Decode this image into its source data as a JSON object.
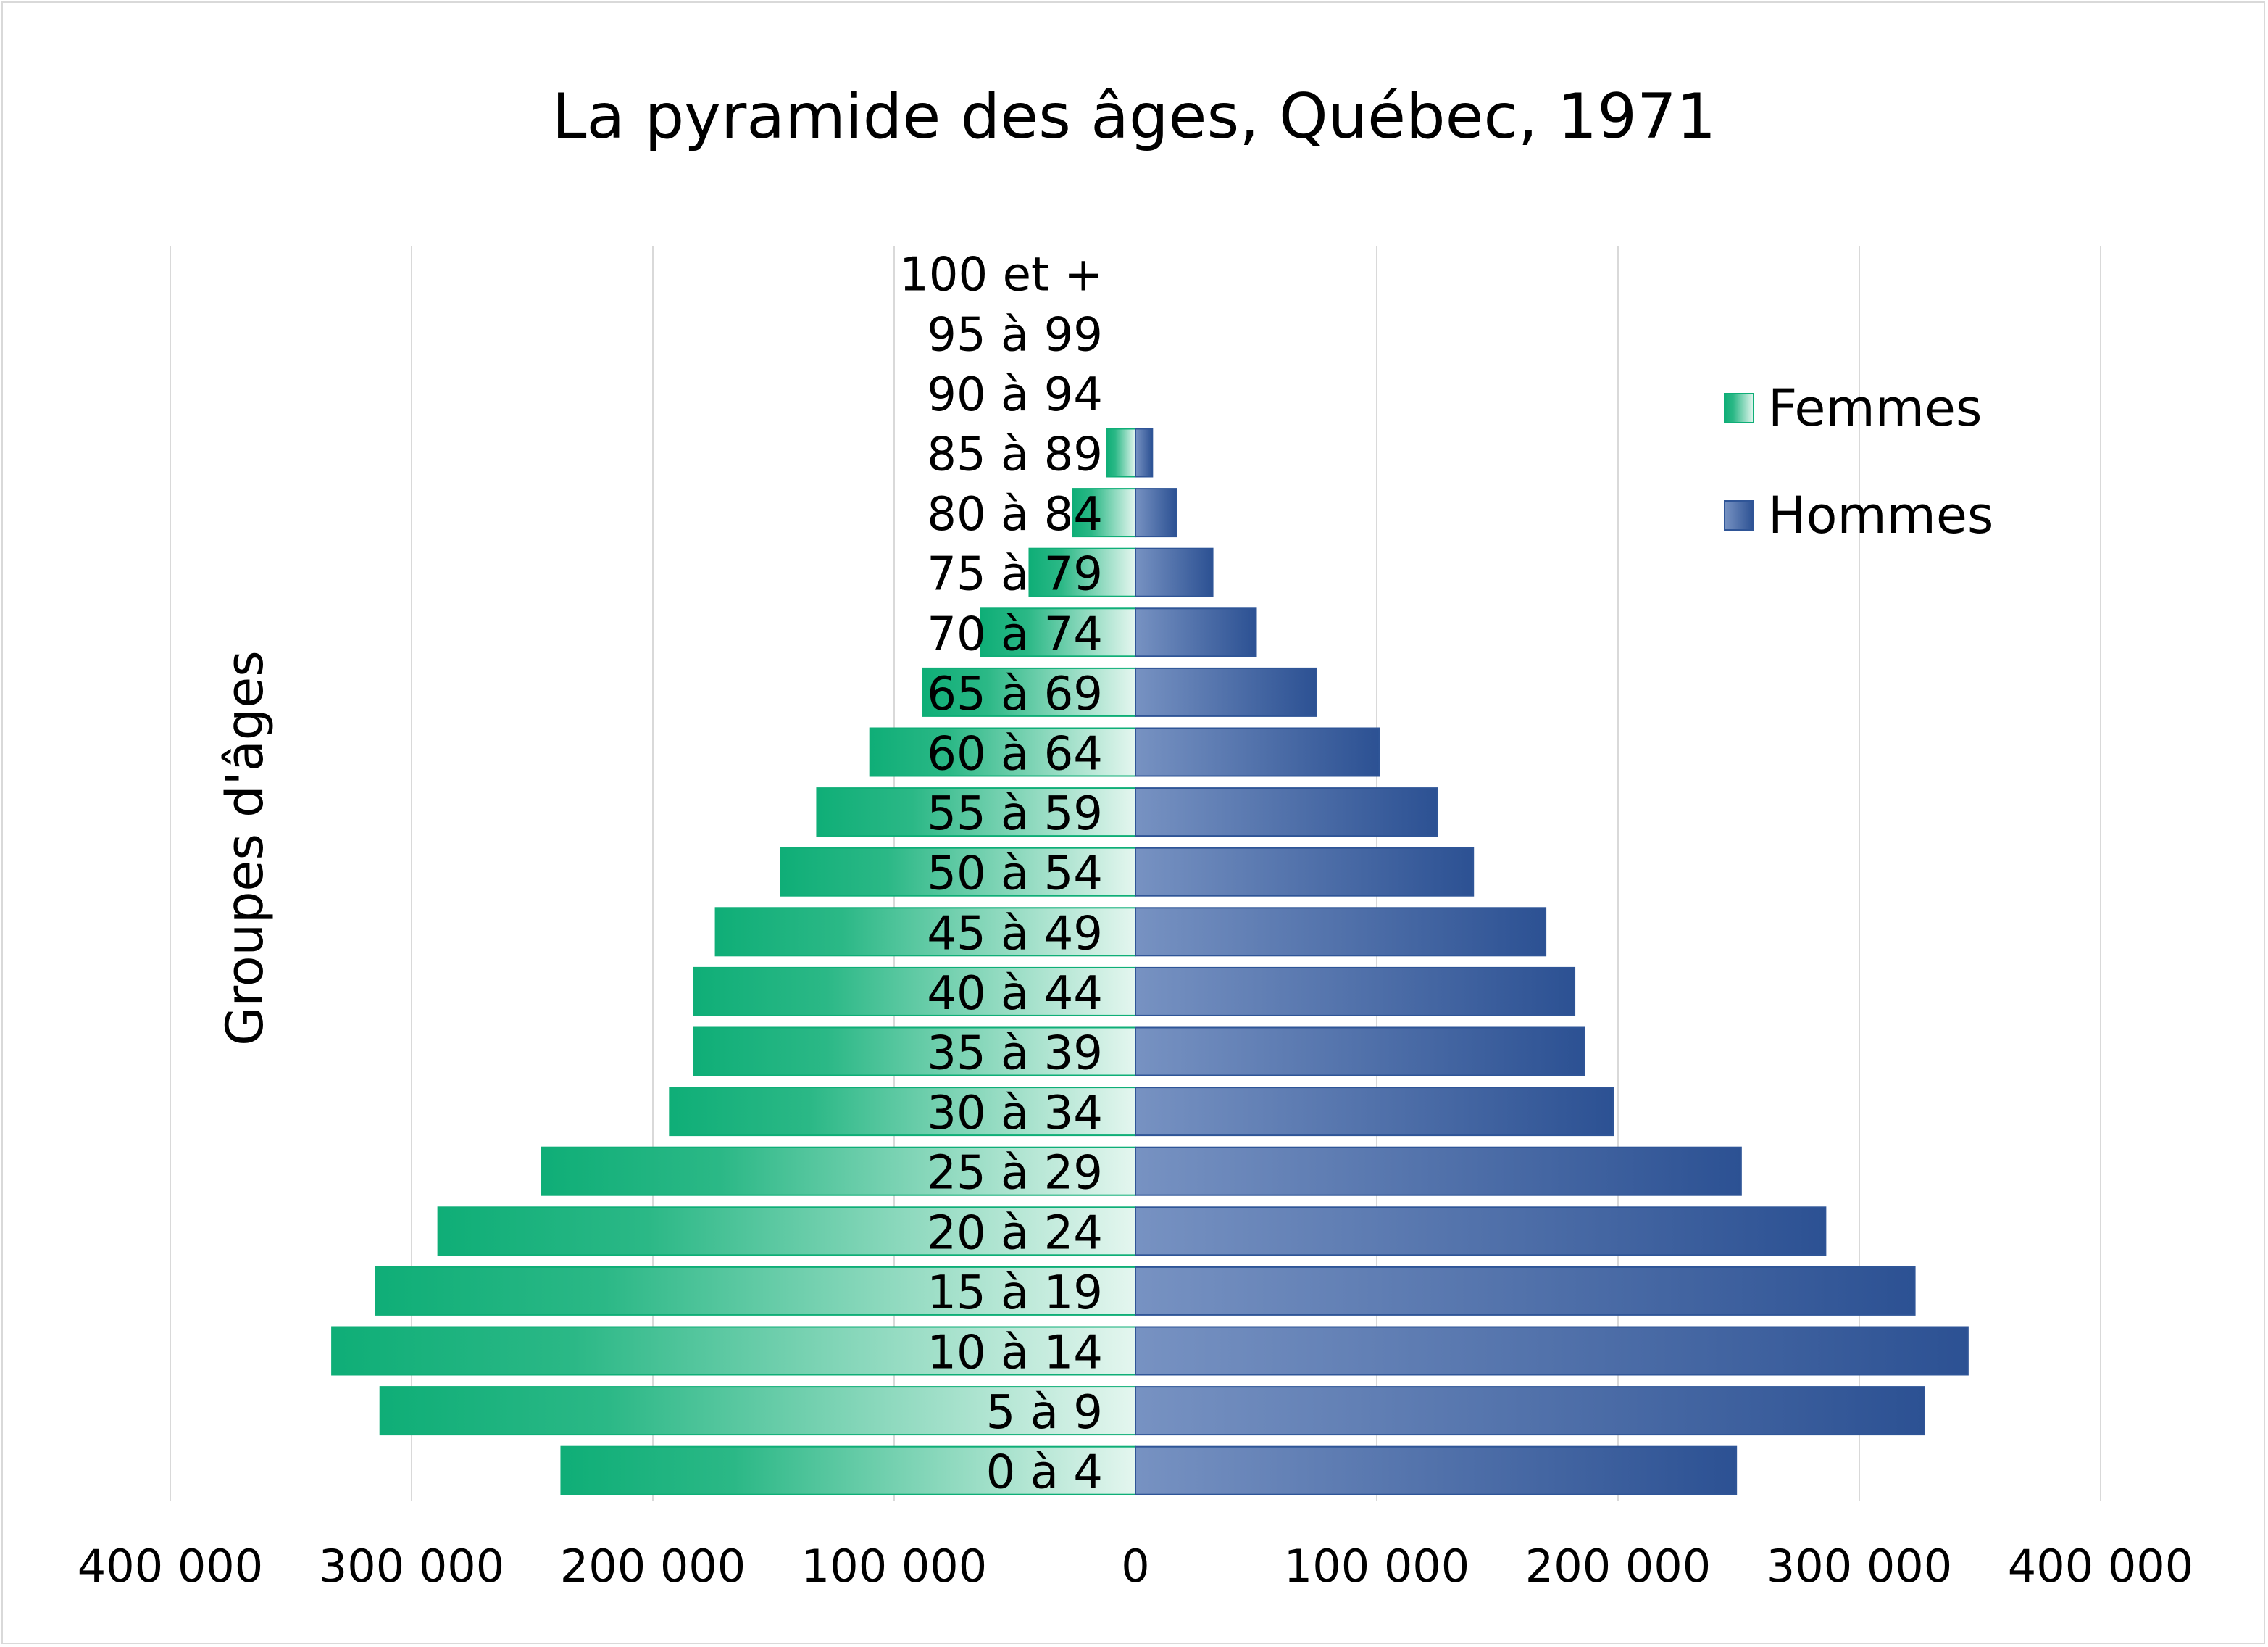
{
  "chart_data": {
    "type": "bar",
    "title": "La pyramide des âges, Québec, 1971",
    "ylabel": "Groupes d'âges",
    "xlabel": "",
    "xlim": [
      -400000,
      400000
    ],
    "x_ticks": [
      -400000,
      -300000,
      -200000,
      -100000,
      0,
      100000,
      200000,
      300000,
      400000
    ],
    "tick_labels": [
      "400 000",
      "300 000",
      "200 000",
      "100 000",
      "0",
      "100 000",
      "200 000",
      "300 000",
      "400 000"
    ],
    "grid": "vertical",
    "legend_position": "top-right",
    "categories": [
      "0 à 4",
      "5 à 9",
      "10 à 14",
      "15 à 19",
      "20 à 24",
      "25 à 29",
      "30 à 34",
      "35 à 39",
      "40 à 44",
      "45 à 49",
      "50 à 54",
      "55 à 59",
      "60 à 64",
      "65 à 69",
      "70 à 74",
      "75 à 79",
      "80 à 84",
      "85 à 89",
      "90 à 94",
      "95 à 99",
      "100 et +"
    ],
    "series": [
      {
        "name": "Femmes",
        "color": "#0fae77",
        "side": "left",
        "values": [
          238000,
          313000,
          333000,
          315000,
          289000,
          246000,
          193000,
          183000,
          183000,
          174000,
          147000,
          132000,
          110000,
          88000,
          64000,
          44000,
          26000,
          12000,
          0,
          0,
          0
        ]
      },
      {
        "name": "Hommes",
        "color": "#2f5597",
        "side": "right",
        "values": [
          249000,
          327000,
          345000,
          323000,
          286000,
          251000,
          198000,
          186000,
          182000,
          170000,
          140000,
          125000,
          101000,
          75000,
          50000,
          32000,
          17000,
          7000,
          0,
          0,
          0
        ]
      }
    ]
  }
}
